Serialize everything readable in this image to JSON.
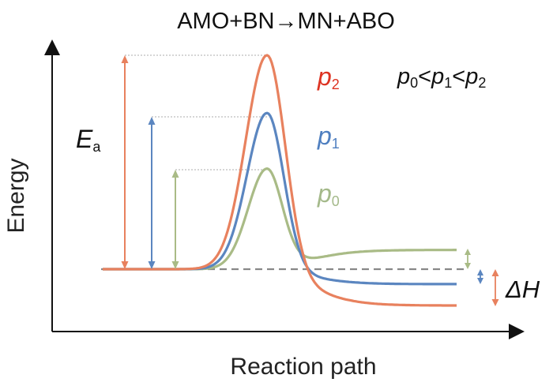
{
  "title": "AMO+BN→MN+ABO",
  "x_axis_label": "Reaction path",
  "y_axis_label": "Energy",
  "activation_energy_label": {
    "symbol": "E",
    "subscript": "a"
  },
  "enthalpy_label": "ΔH",
  "pressure_relation": {
    "p0": "p",
    "s0": "0",
    "lt1": "<",
    "p1": "p",
    "s1": "1",
    "lt2": "<",
    "p2": "p",
    "s2": "2"
  },
  "curves": [
    {
      "id": "p2",
      "symbol": "p",
      "subscript": "2",
      "color": "#e8815e",
      "label_color": "#dd3322",
      "peak_energy": 1.0,
      "final_energy": -0.17
    },
    {
      "id": "p1",
      "symbol": "p",
      "subscript": "1",
      "color": "#5b86c0",
      "label_color": "#4f7fc0",
      "peak_energy": 0.73,
      "final_energy": -0.07
    },
    {
      "id": "p0",
      "symbol": "p",
      "subscript": "0",
      "color": "#a9bb86",
      "label_color": "#a4b98a",
      "peak_energy": 0.47,
      "final_energy": 0.09
    }
  ],
  "colors": {
    "axis": "#111111",
    "baseline": "#888888",
    "guide": "#c8c8c8"
  }
}
